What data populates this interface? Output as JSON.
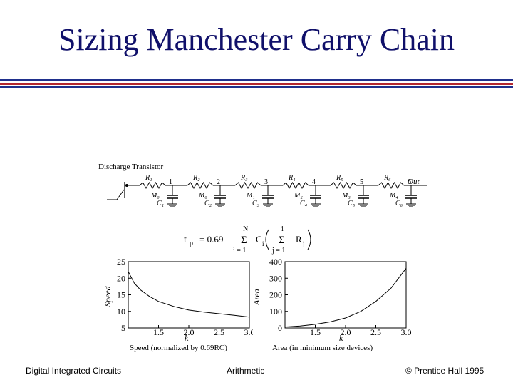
{
  "slide": {
    "title": "Sizing Manchester Carry Chain",
    "footer_left": "Digital Integrated Circuits",
    "footer_center": "Arithmetic",
    "footer_right": "© Prentice Hall 1995",
    "colors": {
      "title": "#10106a",
      "rule_blue": "#1f2f8c",
      "rule_red": "#b3272f"
    }
  },
  "circuit": {
    "discharge_label": "Discharge Transistor",
    "out_label": "Out",
    "nodes": [
      "1",
      "2",
      "3",
      "4",
      "5",
      "6"
    ],
    "resistors": [
      "R₁",
      "R₂",
      "R₃",
      "R₄",
      "R₅",
      "R₆"
    ],
    "transistors": [
      "M₀",
      "M₀",
      "M₁",
      "M₂",
      "M₃",
      "M₄"
    ],
    "capacitors": [
      "C₁",
      "C₂",
      "C₃",
      "C₄",
      "C₅",
      "C₆"
    ]
  },
  "formula": {
    "lhs": "t",
    "lhs_sub": "p",
    "equals": "= 0.69",
    "sum_outer_top": "N",
    "sum_outer_bottom": "i = 1",
    "c_term": "C",
    "c_sub": "i",
    "sum_inner_top": "i",
    "sum_inner_bottom": "j = 1",
    "r_term": "R",
    "r_sub": "j"
  },
  "chart_data": [
    {
      "type": "line",
      "ylabel": "Speed",
      "xlabel": "Speed (normalized by 0.69RC)",
      "x_axis_letter": "k",
      "xlim": [
        1,
        3
      ],
      "ylim": [
        5,
        25
      ],
      "x_ticks": [
        "1.5",
        "2.0",
        "2.5",
        "3.0"
      ],
      "y_ticks": [
        "5",
        "10",
        "15",
        "20",
        "25"
      ],
      "x": [
        1.0,
        1.1,
        1.2,
        1.35,
        1.5,
        1.75,
        2.0,
        2.25,
        2.5,
        2.75,
        3.0
      ],
      "values": [
        22.0,
        18.5,
        16.5,
        14.5,
        13.0,
        11.5,
        10.4,
        9.8,
        9.3,
        8.8,
        8.3
      ]
    },
    {
      "type": "line",
      "ylabel": "Area",
      "xlabel": "Area (in minimum size devices)",
      "x_axis_letter": "k",
      "xlim": [
        1,
        3
      ],
      "ylim": [
        0,
        400
      ],
      "x_ticks": [
        "1.5",
        "2.0",
        "2.5",
        "3.0"
      ],
      "y_ticks": [
        "0",
        "100",
        "200",
        "300",
        "400"
      ],
      "x": [
        1.0,
        1.25,
        1.5,
        1.75,
        2.0,
        2.25,
        2.5,
        2.75,
        3.0
      ],
      "values": [
        6,
        12,
        22,
        37,
        60,
        100,
        160,
        240,
        360
      ]
    }
  ]
}
